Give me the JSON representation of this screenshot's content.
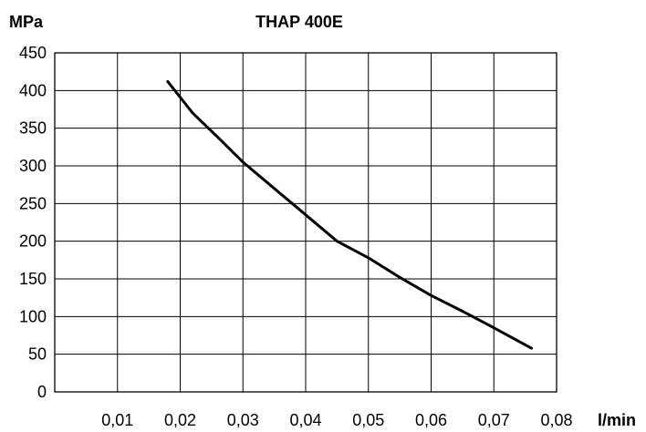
{
  "chart_data": {
    "type": "line",
    "title": "THAP 400E",
    "xlabel": "l/min",
    "ylabel": "MPa",
    "xlim": [
      0,
      0.08
    ],
    "ylim": [
      0,
      450
    ],
    "grid": true,
    "x_ticks": [
      0.01,
      0.02,
      0.03,
      0.04,
      0.05,
      0.06,
      0.07,
      0.08
    ],
    "x_tick_labels": [
      "0,01",
      "0,02",
      "0,03",
      "0,04",
      "0,05",
      "0,06",
      "0,07",
      "0,08"
    ],
    "y_ticks": [
      0,
      50,
      100,
      150,
      200,
      250,
      300,
      350,
      400,
      450
    ],
    "y_tick_labels": [
      "0",
      "50",
      "100",
      "150",
      "200",
      "250",
      "300",
      "350",
      "400",
      "450"
    ],
    "series": [
      {
        "x": [
          0.018,
          0.022,
          0.026,
          0.03,
          0.035,
          0.04,
          0.045,
          0.05,
          0.055,
          0.06,
          0.065,
          0.07,
          0.076
        ],
        "y": [
          412,
          370,
          338,
          305,
          270,
          235,
          200,
          178,
          152,
          128,
          107,
          85,
          58
        ],
        "color": "#000000"
      }
    ]
  }
}
